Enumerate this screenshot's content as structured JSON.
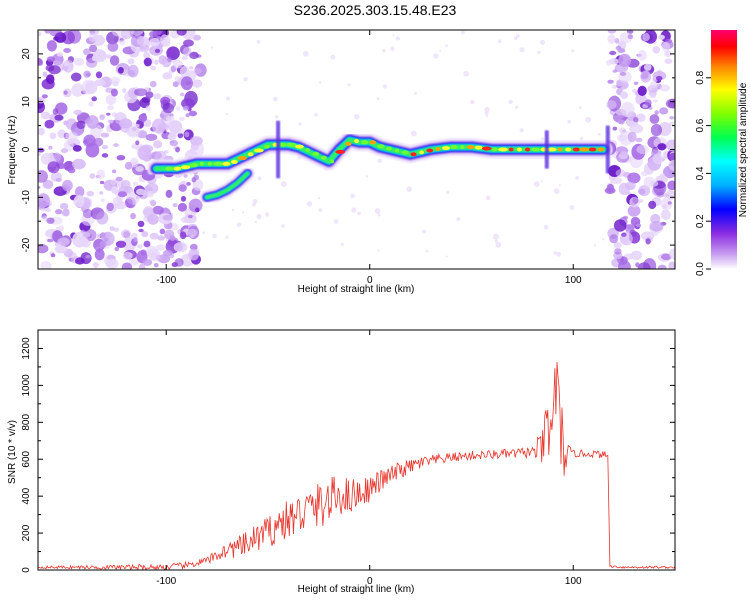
{
  "title": "S236.2025.303.15.48.E23",
  "chart_data": [
    {
      "type": "heatmap",
      "xlabel": "Height of straight line (km)",
      "ylabel": "Frequency (Hz)",
      "xlim": [
        -163,
        150
      ],
      "ylim": [
        -25,
        25
      ],
      "xticks": [
        -100,
        0,
        100
      ],
      "yticks": [
        -20,
        -10,
        0,
        10,
        20
      ],
      "colorbar": {
        "label": "Normalized spectral amplitude",
        "range": [
          0,
          1
        ],
        "ticks": [
          "0.0",
          "0.2",
          "0.4",
          "0.6",
          "0.8"
        ]
      },
      "ridge": {
        "x": [
          -105,
          -95,
          -85,
          -80,
          -75,
          -70,
          -65,
          -60,
          -55,
          -50,
          -45,
          -40,
          -35,
          -30,
          -25,
          -20,
          -15,
          -10,
          -5,
          0,
          5,
          10,
          20,
          30,
          40,
          50,
          60,
          70,
          80,
          85,
          90,
          95,
          100,
          105,
          115
        ],
        "y": [
          -4,
          -4,
          -3,
          -3,
          -3,
          -3,
          -2,
          -1,
          0,
          1,
          1,
          1,
          0.5,
          -0.5,
          -1.5,
          -2.5,
          0,
          2,
          1.5,
          1.5,
          0.5,
          0,
          -1,
          0,
          0.5,
          0.5,
          0,
          0,
          0,
          0,
          0,
          0,
          0,
          0,
          0
        ]
      },
      "branch": {
        "x": [
          -80,
          -75,
          -70,
          -65,
          -60
        ],
        "y": [
          -10,
          -9.5,
          -8.5,
          -7,
          -5
        ]
      },
      "noise_x_ranges": [
        [
          -163,
          -83
        ],
        [
          118,
          150
        ]
      ]
    },
    {
      "type": "line",
      "xlabel": "Height of straight line (km)",
      "ylabel": "SNR (10 * v/v)",
      "xlim": [
        -163,
        150
      ],
      "ylim": [
        0,
        1300
      ],
      "xticks": [
        -100,
        0,
        100
      ],
      "yticks": [
        0,
        200,
        400,
        600,
        800,
        1000,
        1200
      ],
      "color": "#e8332a",
      "envelope": {
        "x": [
          -163,
          -100,
          -90,
          -80,
          -75,
          -70,
          -65,
          -60,
          -55,
          -50,
          -45,
          -40,
          -35,
          -30,
          -25,
          -20,
          -15,
          -10,
          -5,
          0,
          5,
          10,
          15,
          20,
          25,
          30,
          40,
          50,
          60,
          70,
          80,
          85,
          87,
          89,
          91,
          93,
          95,
          100,
          110,
          117,
          118,
          125,
          150
        ],
        "y": [
          15,
          15,
          25,
          50,
          80,
          110,
          120,
          140,
          180,
          200,
          250,
          270,
          300,
          330,
          350,
          370,
          410,
          400,
          420,
          440,
          480,
          510,
          540,
          560,
          580,
          590,
          610,
          620,
          625,
          630,
          640,
          660,
          780,
          650,
          1100,
          800,
          620,
          630,
          630,
          620,
          20,
          15,
          15
        ]
      },
      "noise_amplitude": {
        "x": [
          -163,
          -80,
          -60,
          -40,
          -20,
          0,
          20,
          40,
          60,
          80,
          86,
          88,
          90,
          92,
          94,
          96,
          100,
          117,
          118,
          150
        ],
        "y": [
          6,
          20,
          70,
          110,
          130,
          70,
          40,
          25,
          25,
          30,
          120,
          300,
          250,
          280,
          300,
          80,
          20,
          20,
          6,
          6
        ]
      }
    }
  ]
}
